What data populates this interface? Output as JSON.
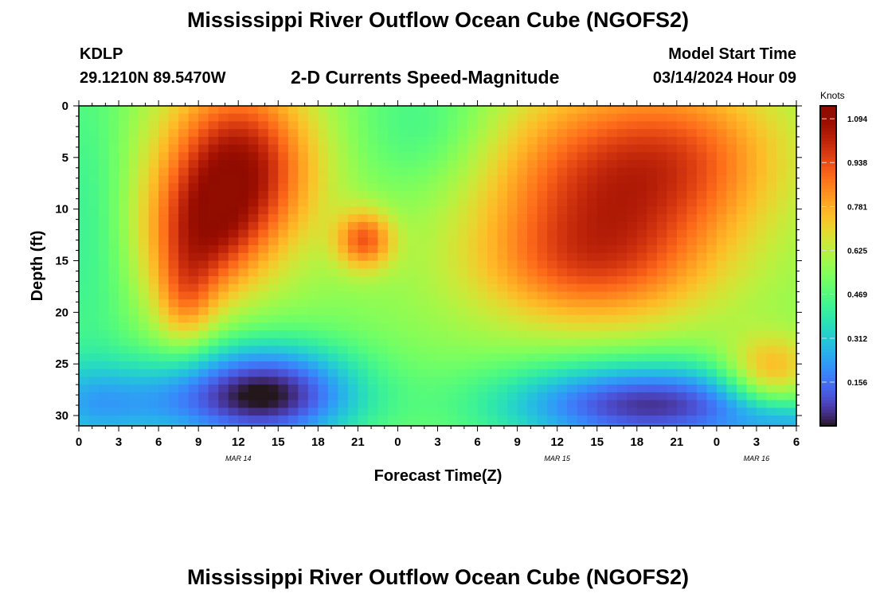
{
  "header": {
    "title": "Mississippi River Outflow Ocean Cube (NGOFS2)",
    "station_id": "KDLP",
    "station_coords": "29.1210N  89.5470W",
    "subtitle": "2-D Currents Speed-Magnitude",
    "model_start_label": "Model Start Time",
    "model_start_value": "03/14/2024 Hour 09"
  },
  "footer": {
    "title": "Mississippi River Outflow Ocean Cube (NGOFS2)"
  },
  "chart_data": {
    "type": "heatmap",
    "title": "2-D Currents Speed-Magnitude",
    "xlabel": "Forecast Time(Z)",
    "ylabel": "Depth (ft)",
    "x_range": [
      0,
      54
    ],
    "y_range": [
      0,
      31
    ],
    "y_reversed": true,
    "x_ticks": [
      0,
      3,
      6,
      9,
      12,
      15,
      18,
      21,
      24,
      27,
      30,
      33,
      36,
      39,
      42,
      45,
      48,
      51,
      54
    ],
    "x_tick_labels": [
      "0",
      "3",
      "6",
      "9",
      "12",
      "15",
      "18",
      "21",
      "0",
      "3",
      "6",
      "9",
      "12",
      "15",
      "18",
      "21",
      "0",
      "3",
      "6"
    ],
    "date_labels": [
      {
        "x": 12,
        "text": "MAR 14"
      },
      {
        "x": 36,
        "text": "MAR 15"
      },
      {
        "x": 51,
        "text": "MAR 16"
      }
    ],
    "y_ticks": [
      0,
      5,
      10,
      15,
      20,
      25,
      30
    ],
    "colorbar": {
      "label": "Knots",
      "range": [
        0,
        1.14
      ],
      "ticks": [
        1.094,
        0.938,
        0.781,
        0.625,
        0.469,
        0.312,
        0.156
      ],
      "tick_labels": [
        "1.094",
        "0.938",
        "0.781",
        "0.625",
        "0.469",
        "0.312",
        "0.156"
      ],
      "colormap": "turbo"
    },
    "field": {
      "description": "speed in knots as base plus gaussian blobs over (hour, depth_ft)",
      "base": 0.55,
      "blobs": [
        {
          "x": 0.5,
          "y": 12,
          "sx": 2.5,
          "sy": 14,
          "a": -0.13
        },
        {
          "x": 12,
          "y": 6,
          "sx": 4,
          "sy": 6,
          "a": 0.52
        },
        {
          "x": 9,
          "y": 13,
          "sx": 3,
          "sy": 4.5,
          "a": 0.3
        },
        {
          "x": 8,
          "y": 19,
          "sx": 1.6,
          "sy": 3.5,
          "a": 0.2
        },
        {
          "x": 21.5,
          "y": 13,
          "sx": 1.5,
          "sy": 2.0,
          "a": 0.35
        },
        {
          "x": 26,
          "y": 2,
          "sx": 4,
          "sy": 5,
          "a": -0.13
        },
        {
          "x": 40,
          "y": 8,
          "sx": 7,
          "sy": 7,
          "a": 0.42
        },
        {
          "x": 47,
          "y": 4,
          "sx": 5,
          "sy": 5,
          "a": 0.15
        },
        {
          "x": 38,
          "y": 16,
          "sx": 6,
          "sy": 4,
          "a": 0.2
        },
        {
          "x": 14,
          "y": 28,
          "sx": 5,
          "sy": 3.5,
          "a": -0.55
        },
        {
          "x": 43,
          "y": 29,
          "sx": 8,
          "sy": 3,
          "a": -0.5
        },
        {
          "x": 2,
          "y": 29,
          "sx": 5,
          "sy": 3,
          "a": -0.25
        },
        {
          "x": 54,
          "y": 31,
          "sx": 3,
          "sy": 1.5,
          "a": -0.15
        },
        {
          "x": 52,
          "y": 26,
          "sx": 2.5,
          "sy": 2.5,
          "a": 0.32
        }
      ],
      "grid_dx_hours": 0.75,
      "grid_dy_ft": 0.75
    }
  }
}
